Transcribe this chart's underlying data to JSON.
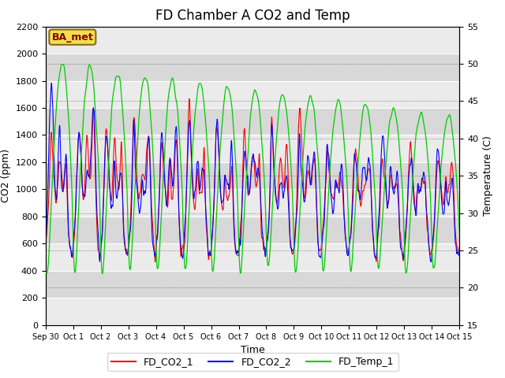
{
  "title": "FD Chamber A CO2 and Temp",
  "xlabel": "Time",
  "ylabel_left": "CO2 (ppm)",
  "ylabel_right": "Temperature (C)",
  "ylim_left": [
    0,
    2200
  ],
  "ylim_right": [
    15,
    55
  ],
  "xtick_labels": [
    "Sep 30",
    "Oct 1",
    "Oct 2",
    "Oct 3",
    "Oct 4",
    "Oct 5",
    "Oct 6",
    "Oct 7",
    "Oct 8",
    "Oct 9",
    "Oct 10",
    "Oct 11",
    "Oct 12",
    "Oct 13",
    "Oct 14",
    "Oct 15"
  ],
  "legend_labels": [
    "FD_CO2_1",
    "FD_CO2_2",
    "FD_Temp_1"
  ],
  "colors": [
    "red",
    "blue",
    "#00cc00"
  ],
  "annotation_text": "BA_met",
  "bg_color": "#d8d8d8",
  "band_color": "#ebebeb",
  "title_fontsize": 12,
  "axis_fontsize": 9,
  "tick_fontsize": 8,
  "xtick_fontsize": 7
}
